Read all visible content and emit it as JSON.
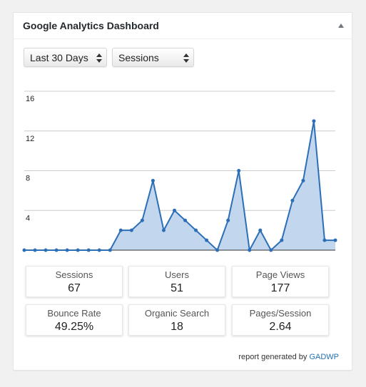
{
  "widget": {
    "title": "Google Analytics Dashboard",
    "toggle_icon": "triangle-up-icon"
  },
  "filters": {
    "range": "Last 30 Days",
    "metric": "Sessions"
  },
  "chart_data": {
    "type": "area",
    "title": "",
    "xlabel": "",
    "ylabel": "",
    "y_ticks": [
      "4",
      "8",
      "12",
      "16"
    ],
    "ylim": [
      0,
      16
    ],
    "grid": true,
    "series": [
      {
        "values": [
          0,
          0,
          0,
          0,
          0,
          0,
          0,
          0,
          0,
          2,
          2,
          3,
          7,
          2,
          4,
          3,
          2,
          1,
          0,
          3,
          8,
          0,
          2,
          0,
          1,
          5,
          7,
          13,
          1,
          1
        ],
        "color": "#2c6fb7",
        "fill": "#c2d6ee"
      }
    ]
  },
  "stats": [
    {
      "label": "Sessions",
      "value": "67"
    },
    {
      "label": "Users",
      "value": "51"
    },
    {
      "label": "Page Views",
      "value": "177"
    },
    {
      "label": "Bounce Rate",
      "value": "49.25%"
    },
    {
      "label": "Organic Search",
      "value": "18"
    },
    {
      "label": "Pages/Session",
      "value": "2.64"
    }
  ],
  "footer": {
    "text": "report generated by",
    "link": "GADWP"
  }
}
